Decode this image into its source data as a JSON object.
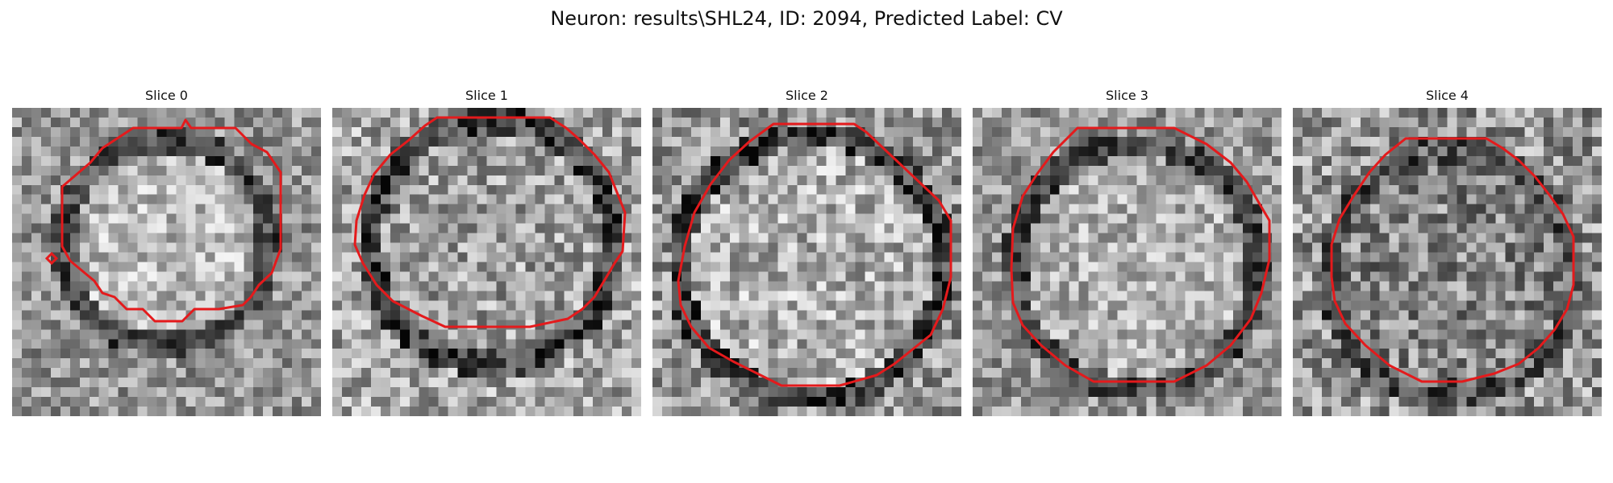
{
  "figure": {
    "title": "Neuron: results\\SHL24, ID: 2094, Predicted Label: CV",
    "contour_color": "#e41a1c"
  },
  "slices": [
    {
      "label": "Slice 0"
    },
    {
      "label": "Slice 1"
    },
    {
      "label": "Slice 2"
    },
    {
      "label": "Slice 3"
    },
    {
      "label": "Slice 4"
    }
  ]
}
